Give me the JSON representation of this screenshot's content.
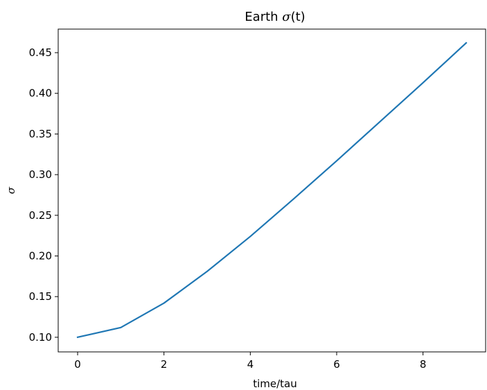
{
  "chart_data": {
    "type": "line",
    "title_text": "Earth ",
    "title_math": "σ",
    "title_suffix": "(t)",
    "xlabel": "time/tau",
    "ylabel": "σ",
    "xlim": [
      -0.45,
      9.45
    ],
    "ylim": [
      0.082,
      0.479
    ],
    "x_ticks": [
      0,
      2,
      4,
      6,
      8
    ],
    "y_ticks": [
      0.1,
      0.15,
      0.2,
      0.25,
      0.3,
      0.35,
      0.4,
      0.45
    ],
    "x_tick_labels": [
      "0",
      "2",
      "4",
      "6",
      "8"
    ],
    "y_tick_labels": [
      "0.10",
      "0.15",
      "0.20",
      "0.25",
      "0.30",
      "0.35",
      "0.40",
      "0.45"
    ],
    "grid": false,
    "series": [
      {
        "color": "#1f77b4",
        "x": [
          0,
          1,
          2,
          3,
          4,
          5,
          6,
          7,
          8,
          9
        ],
        "values": [
          0.1,
          0.112,
          0.142,
          0.181,
          0.224,
          0.27,
          0.317,
          0.365,
          0.413,
          0.462
        ]
      }
    ]
  }
}
